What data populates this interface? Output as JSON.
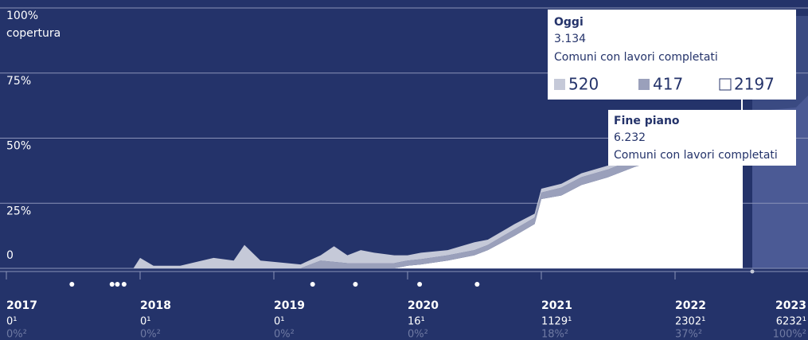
{
  "chart_data": {
    "type": "area",
    "y_label": "copertura",
    "ylim": [
      0,
      100
    ],
    "yticks": [
      0,
      {
        "value": 25,
        "label": "25%"
      },
      {
        "value": 50,
        "label": "50%"
      },
      {
        "value": 75,
        "label": "75%"
      },
      {
        "value": 100,
        "label": "100%"
      }
    ],
    "xlim": [
      2017,
      2023
    ],
    "x": [
      2017.0,
      2017.95,
      2018.0,
      2018.1,
      2018.3,
      2018.55,
      2018.7,
      2018.78,
      2018.9,
      2019.2,
      2019.35,
      2019.45,
      2019.55,
      2019.65,
      2019.75,
      2019.9,
      2020.0,
      2020.1,
      2020.3,
      2020.5,
      2020.6,
      2020.8,
      2020.95,
      2021.0,
      2021.15,
      2021.3,
      2021.5,
      2021.7,
      2021.9,
      2022.1,
      2022.3,
      2022.5
    ],
    "series": [
      {
        "color": "#ffffff",
        "values": [
          0,
          0,
          0,
          0,
          0,
          0,
          0,
          0,
          0,
          0,
          0,
          0,
          0,
          0,
          0,
          0,
          1,
          1.5,
          3,
          5,
          7,
          12.5,
          17,
          26.6,
          28,
          32,
          35,
          39,
          42,
          45,
          48,
          51
        ]
      },
      {
        "color": "#9aa0bb",
        "values": [
          0,
          0,
          0,
          0,
          0,
          0,
          0,
          0,
          0,
          0,
          3,
          2.5,
          2,
          2,
          2,
          2,
          2,
          2,
          2,
          2,
          2,
          2.5,
          2.5,
          2.5,
          3,
          3,
          3,
          3,
          3,
          3,
          3,
          3
        ]
      },
      {
        "color": "#c5c9d8",
        "values": [
          0,
          0,
          4,
          1,
          1,
          4,
          3,
          9,
          3,
          1.5,
          2,
          6,
          3,
          5,
          4,
          3,
          2,
          2.5,
          2,
          3,
          2,
          2,
          1.5,
          1.5,
          1.5,
          1.5,
          1.5,
          1.5,
          1.5,
          1.5,
          1.5,
          1.5
        ]
      }
    ],
    "today": 2022.5,
    "events": [
      2017.49,
      2017.79,
      2017.83,
      2017.88,
      2019.29,
      2019.61,
      2020.09,
      2020.52
    ],
    "years": [
      {
        "year": "2017",
        "count": "0¹",
        "pct": "0%²"
      },
      {
        "year": "2018",
        "count": "0¹",
        "pct": "0%²"
      },
      {
        "year": "2019",
        "count": "0¹",
        "pct": "0%²"
      },
      {
        "year": "2020",
        "count": "16¹",
        "pct": "0%²"
      },
      {
        "year": "2021",
        "count": "1129¹",
        "pct": "18%²"
      },
      {
        "year": "2022",
        "count": "2302¹",
        "pct": "37%²"
      },
      {
        "year": "2023",
        "count": "6232¹",
        "pct": "100%²"
      }
    ],
    "tooltip_today": {
      "title": "Oggi",
      "value": "3.134",
      "caption": "Comuni con lavori completati",
      "legend": [
        520,
        417,
        2197
      ]
    },
    "tooltip_end": {
      "title": "Fine piano",
      "value": "6.232",
      "caption": "Comuni con lavori completati"
    }
  }
}
